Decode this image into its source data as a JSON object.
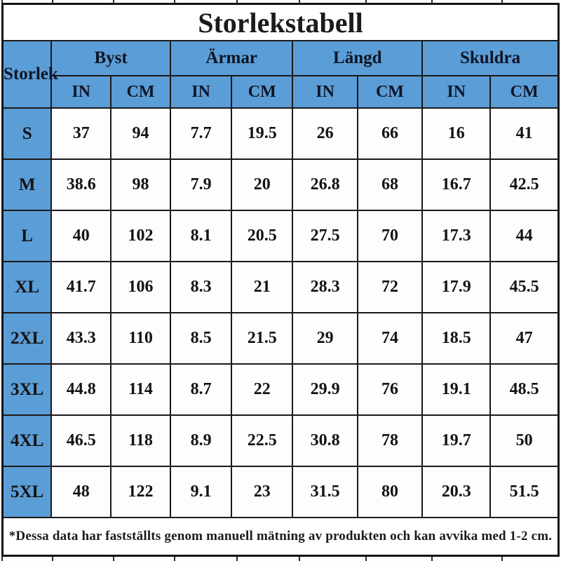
{
  "title": "Storlekstabell",
  "colors": {
    "header_blue": "#5b9dd6",
    "border_black": "#1a1a1a",
    "text_dark": "#131313"
  },
  "table": {
    "corner_label": "Storlek",
    "groups": [
      {
        "label": "Byst"
      },
      {
        "label": "Ärmar"
      },
      {
        "label": "Längd"
      },
      {
        "label": "Skuldra"
      }
    ],
    "units": [
      "IN",
      "CM",
      "IN",
      "CM",
      "IN",
      "CM",
      "IN",
      "CM"
    ],
    "rows": [
      {
        "size": "S",
        "values": [
          "37",
          "94",
          "7.7",
          "19.5",
          "26",
          "66",
          "16",
          "41"
        ]
      },
      {
        "size": "M",
        "values": [
          "38.6",
          "98",
          "7.9",
          "20",
          "26.8",
          "68",
          "16.7",
          "42.5"
        ]
      },
      {
        "size": "L",
        "values": [
          "40",
          "102",
          "8.1",
          "20.5",
          "27.5",
          "70",
          "17.3",
          "44"
        ]
      },
      {
        "size": "XL",
        "values": [
          "41.7",
          "106",
          "8.3",
          "21",
          "28.3",
          "72",
          "17.9",
          "45.5"
        ]
      },
      {
        "size": "2XL",
        "values": [
          "43.3",
          "110",
          "8.5",
          "21.5",
          "29",
          "74",
          "18.5",
          "47"
        ]
      },
      {
        "size": "3XL",
        "values": [
          "44.8",
          "114",
          "8.7",
          "22",
          "29.9",
          "76",
          "19.1",
          "48.5"
        ]
      },
      {
        "size": "4XL",
        "values": [
          "46.5",
          "118",
          "8.9",
          "22.5",
          "30.8",
          "78",
          "19.7",
          "50"
        ]
      },
      {
        "size": "5XL",
        "values": [
          "48",
          "122",
          "9.1",
          "23",
          "31.5",
          "80",
          "20.3",
          "51.5"
        ]
      }
    ]
  },
  "footnote": "*Dessa data har fastställts genom manuell mätning av produkten och kan avvika med 1-2 cm.",
  "chart_data": {
    "type": "table",
    "title": "Storlekstabell",
    "column_groups": [
      "Byst",
      "Ärmar",
      "Längd",
      "Skuldra"
    ],
    "columns": [
      "Storlek",
      "Byst IN",
      "Byst CM",
      "Ärmar IN",
      "Ärmar CM",
      "Längd IN",
      "Längd CM",
      "Skuldra IN",
      "Skuldra CM"
    ],
    "rows": [
      [
        "S",
        37,
        94,
        7.7,
        19.5,
        26,
        66,
        16,
        41
      ],
      [
        "M",
        38.6,
        98,
        7.9,
        20,
        26.8,
        68,
        16.7,
        42.5
      ],
      [
        "L",
        40,
        102,
        8.1,
        20.5,
        27.5,
        70,
        17.3,
        44
      ],
      [
        "XL",
        41.7,
        106,
        8.3,
        21,
        28.3,
        72,
        17.9,
        45.5
      ],
      [
        "2XL",
        43.3,
        110,
        8.5,
        21.5,
        29,
        74,
        18.5,
        47
      ],
      [
        "3XL",
        44.8,
        114,
        8.7,
        22,
        29.9,
        76,
        19.1,
        48.5
      ],
      [
        "4XL",
        46.5,
        118,
        8.9,
        22.5,
        30.8,
        78,
        19.7,
        50
      ],
      [
        "5XL",
        48,
        122,
        9.1,
        23,
        31.5,
        80,
        20.3,
        51.5
      ]
    ],
    "footnote": "*Dessa data har fastställts genom manuell mätning av produkten och kan avvika med 1-2 cm.",
    "layout": {
      "grid": true,
      "header_fill": "#5b9dd6",
      "units_row": [
        "IN",
        "CM"
      ]
    }
  }
}
